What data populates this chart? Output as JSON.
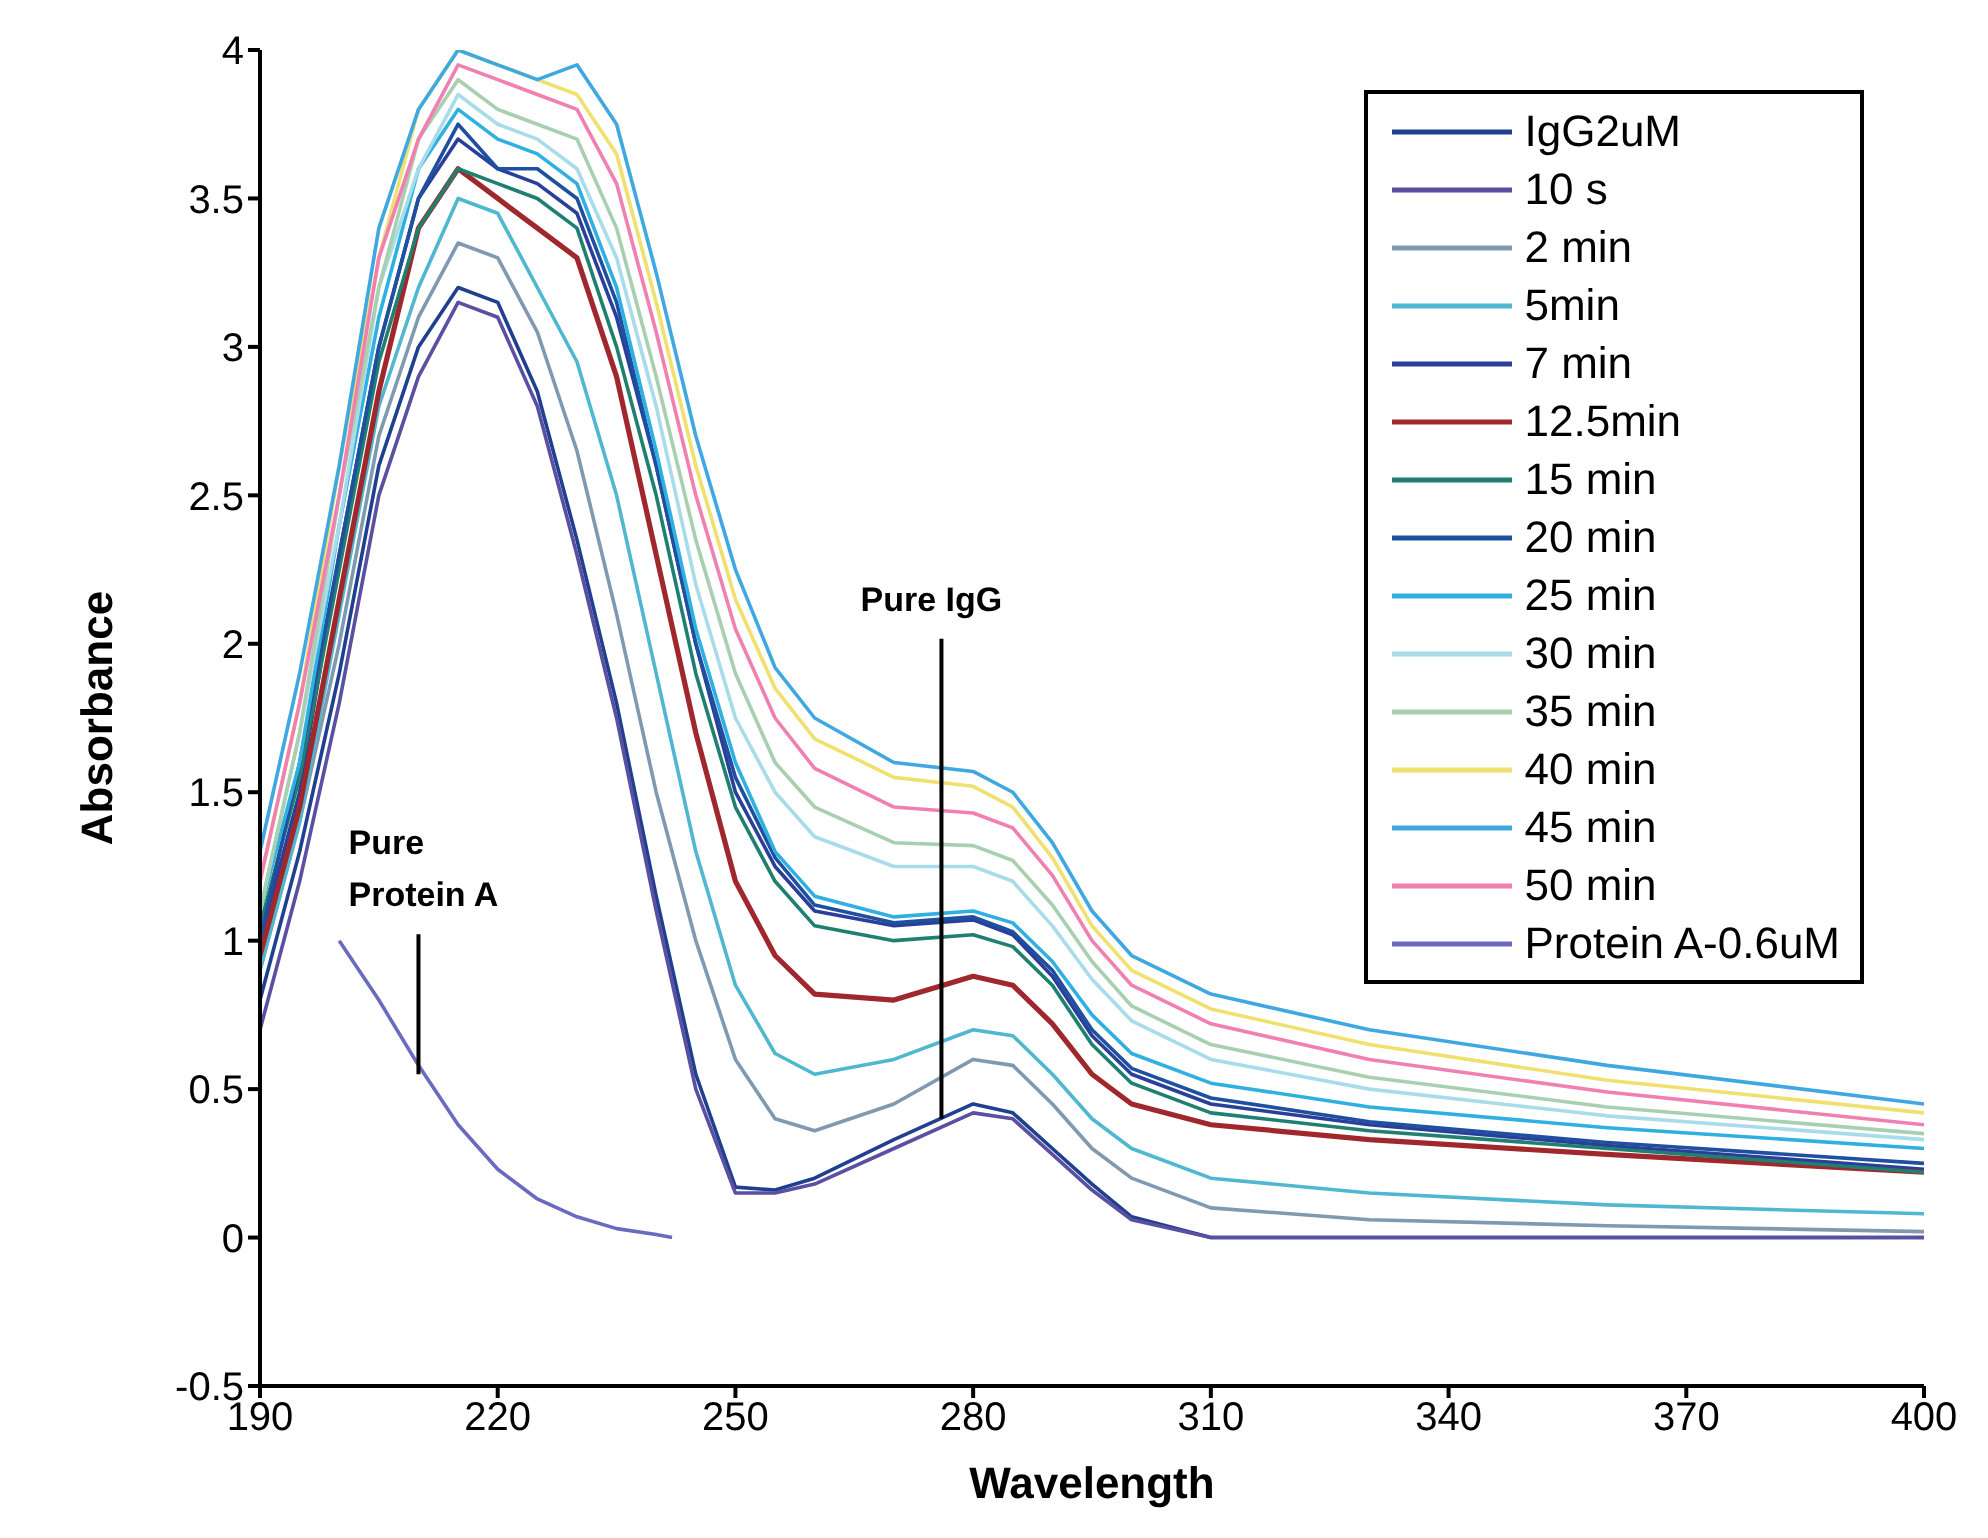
{
  "chart_data": {
    "type": "line",
    "xlabel": "Wavelength",
    "ylabel": "Absorbance",
    "x": [
      190,
      195,
      200,
      205,
      210,
      215,
      220,
      225,
      230,
      235,
      240,
      245,
      250,
      255,
      260,
      270,
      280,
      285,
      290,
      295,
      300,
      310,
      330,
      360,
      400
    ],
    "xlim": [
      190,
      400
    ],
    "xticks": [
      190,
      220,
      250,
      280,
      310,
      340,
      370,
      400
    ],
    "ylim": [
      -0.5,
      4
    ],
    "yticks": [
      -0.5,
      0,
      0.5,
      1,
      1.5,
      2,
      2.5,
      3,
      3.5,
      4
    ],
    "grid": false,
    "legend": "top right",
    "marker": "none",
    "line_style": "solid",
    "annotations": [
      {
        "text": "Pure Protein A",
        "x": 210,
        "y": 0.55
      },
      {
        "text": "Pure IgG",
        "x": 276,
        "y": 0.4
      }
    ],
    "series": [
      {
        "name": "IgG2uM",
        "color": "#1f3f8f",
        "values": [
          0.8,
          1.3,
          1.9,
          2.6,
          3.0,
          3.2,
          3.15,
          2.85,
          2.35,
          1.8,
          1.15,
          0.55,
          0.17,
          0.16,
          0.2,
          0.33,
          0.45,
          0.42,
          0.3,
          0.18,
          0.07,
          0,
          0,
          0,
          0
        ]
      },
      {
        "name": "10 s",
        "color": "#5a4fa0",
        "values": [
          0.7,
          1.2,
          1.8,
          2.5,
          2.9,
          3.15,
          3.1,
          2.8,
          2.3,
          1.75,
          1.1,
          0.5,
          0.15,
          0.15,
          0.18,
          0.3,
          0.42,
          0.4,
          0.28,
          0.16,
          0.06,
          0,
          0,
          0,
          0
        ]
      },
      {
        "name": "2 min",
        "color": "#7f9ab0",
        "values": [
          0.9,
          1.4,
          2.0,
          2.7,
          3.1,
          3.35,
          3.3,
          3.05,
          2.65,
          2.1,
          1.5,
          1.0,
          0.6,
          0.4,
          0.36,
          0.45,
          0.6,
          0.58,
          0.45,
          0.3,
          0.2,
          0.1,
          0.06,
          0.04,
          0.02
        ]
      },
      {
        "name": "5min",
        "color": "#4fb8d0",
        "values": [
          0.9,
          1.4,
          2.1,
          2.8,
          3.2,
          3.5,
          3.45,
          3.2,
          2.95,
          2.5,
          1.9,
          1.3,
          0.85,
          0.62,
          0.55,
          0.6,
          0.7,
          0.68,
          0.55,
          0.4,
          0.3,
          0.2,
          0.15,
          0.11,
          0.08
        ]
      },
      {
        "name": "7 min",
        "color": "#2a3f9a",
        "values": [
          1.0,
          1.5,
          2.3,
          3.0,
          3.5,
          3.7,
          3.6,
          3.55,
          3.45,
          3.1,
          2.6,
          2.0,
          1.5,
          1.25,
          1.1,
          1.05,
          1.07,
          1.02,
          0.88,
          0.68,
          0.55,
          0.45,
          0.38,
          0.31,
          0.23
        ]
      },
      {
        "name": "12.5min",
        "color": "#a0282c",
        "values": [
          0.95,
          1.45,
          2.15,
          2.85,
          3.4,
          3.6,
          3.5,
          3.4,
          3.3,
          2.9,
          2.3,
          1.7,
          1.2,
          0.95,
          0.82,
          0.8,
          0.88,
          0.85,
          0.72,
          0.55,
          0.45,
          0.38,
          0.33,
          0.28,
          0.22
        ]
      },
      {
        "name": "15 min",
        "color": "#1f7f70",
        "values": [
          1.05,
          1.55,
          2.25,
          2.95,
          3.4,
          3.6,
          3.55,
          3.5,
          3.4,
          3.0,
          2.5,
          1.9,
          1.45,
          1.2,
          1.05,
          1.0,
          1.02,
          0.98,
          0.85,
          0.65,
          0.52,
          0.42,
          0.36,
          0.3,
          0.22
        ]
      },
      {
        "name": "20 min",
        "color": "#1f4f9f",
        "values": [
          1.0,
          1.6,
          2.3,
          3.0,
          3.5,
          3.75,
          3.6,
          3.6,
          3.5,
          3.15,
          2.6,
          2.0,
          1.55,
          1.28,
          1.12,
          1.06,
          1.08,
          1.03,
          0.9,
          0.7,
          0.57,
          0.47,
          0.39,
          0.32,
          0.25
        ]
      },
      {
        "name": "25 min",
        "color": "#30b0e0",
        "values": [
          1.1,
          1.6,
          2.4,
          3.1,
          3.6,
          3.8,
          3.7,
          3.65,
          3.55,
          3.2,
          2.65,
          2.05,
          1.6,
          1.3,
          1.15,
          1.08,
          1.1,
          1.06,
          0.93,
          0.75,
          0.62,
          0.52,
          0.44,
          0.37,
          0.3
        ]
      },
      {
        "name": "30 min",
        "color": "#a8dcea",
        "values": [
          1.1,
          1.7,
          2.4,
          3.2,
          3.6,
          3.85,
          3.75,
          3.7,
          3.6,
          3.3,
          2.8,
          2.2,
          1.75,
          1.5,
          1.35,
          1.25,
          1.25,
          1.2,
          1.05,
          0.87,
          0.73,
          0.6,
          0.5,
          0.41,
          0.33
        ]
      },
      {
        "name": "35 min",
        "color": "#a8d0b0",
        "values": [
          1.1,
          1.7,
          2.5,
          3.2,
          3.7,
          3.9,
          3.8,
          3.75,
          3.7,
          3.4,
          2.9,
          2.35,
          1.9,
          1.6,
          1.45,
          1.33,
          1.32,
          1.27,
          1.12,
          0.93,
          0.78,
          0.65,
          0.54,
          0.44,
          0.35
        ]
      },
      {
        "name": "40 min",
        "color": "#f0e070",
        "values": [
          1.2,
          1.8,
          2.6,
          3.3,
          3.8,
          4.0,
          3.95,
          3.9,
          3.85,
          3.65,
          3.15,
          2.6,
          2.15,
          1.85,
          1.68,
          1.55,
          1.52,
          1.45,
          1.28,
          1.05,
          0.9,
          0.77,
          0.65,
          0.53,
          0.42
        ]
      },
      {
        "name": "45 min",
        "color": "#40a8e0",
        "values": [
          1.3,
          1.9,
          2.6,
          3.4,
          3.8,
          4.0,
          3.95,
          3.9,
          3.95,
          3.75,
          3.25,
          2.7,
          2.25,
          1.92,
          1.75,
          1.6,
          1.57,
          1.5,
          1.33,
          1.1,
          0.95,
          0.82,
          0.7,
          0.58,
          0.45
        ]
      },
      {
        "name": "50 min",
        "color": "#f080b0",
        "values": [
          1.2,
          1.8,
          2.5,
          3.3,
          3.7,
          3.95,
          3.9,
          3.85,
          3.8,
          3.55,
          3.05,
          2.5,
          2.05,
          1.75,
          1.58,
          1.45,
          1.43,
          1.38,
          1.22,
          1.0,
          0.85,
          0.72,
          0.6,
          0.49,
          0.38
        ]
      },
      {
        "name": "Protein A-0.6uM",
        "color": "#6a6ac0",
        "x": [
          200,
          205,
          210,
          215,
          220,
          225,
          230,
          235,
          240,
          242
        ],
        "values": [
          1.0,
          0.8,
          0.58,
          0.38,
          0.23,
          0.13,
          0.07,
          0.03,
          0.01,
          0
        ]
      }
    ]
  }
}
